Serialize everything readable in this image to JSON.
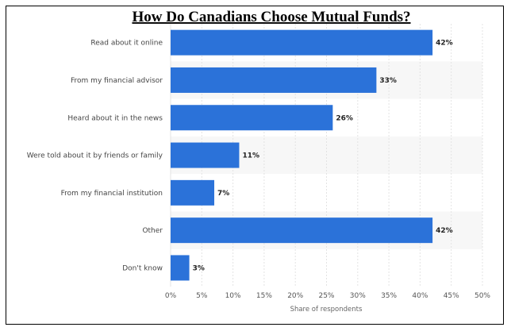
{
  "chart_data": {
    "type": "bar",
    "orientation": "horizontal",
    "title": "How Do Canadians Choose Mutual Funds?",
    "xlabel": "Share of respondents",
    "ylabel": "",
    "categories": [
      "Read about it online",
      "From my financial advisor",
      "Heard about it in the news",
      "Were told about it by friends or family",
      "From my financial institution",
      "Other",
      "Don't know"
    ],
    "values": [
      42,
      33,
      26,
      11,
      7,
      42,
      3
    ],
    "value_labels": [
      "42%",
      "33%",
      "26%",
      "11%",
      "7%",
      "42%",
      "3%"
    ],
    "xlim": [
      0,
      50
    ],
    "ticks": [
      "0%",
      "5%",
      "10%",
      "15%",
      "20%",
      "25%",
      "30%",
      "35%",
      "40%",
      "45%",
      "50%"
    ],
    "grid": true,
    "bar_color": "#2b72d9",
    "stripe_color": "#f7f7f7"
  }
}
